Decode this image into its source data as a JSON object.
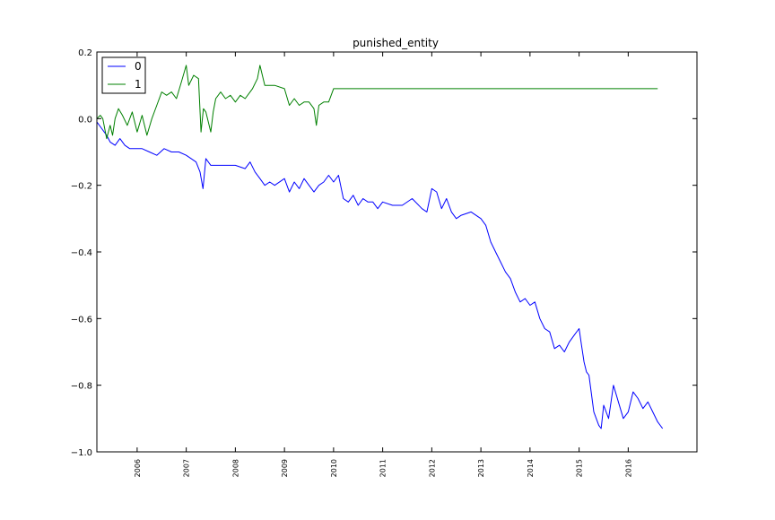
{
  "chart_data": {
    "type": "line",
    "title": "punished_entity",
    "xlabel": "",
    "ylabel": "",
    "xlim": [
      2005.18,
      2017.4
    ],
    "ylim": [
      -1.0,
      0.2
    ],
    "yticks": [
      {
        "value": 0.2,
        "label": "0.2"
      },
      {
        "value": 0.0,
        "label": "0.0"
      },
      {
        "value": -0.2,
        "label": "−0.2"
      },
      {
        "value": -0.4,
        "label": "−0.4"
      },
      {
        "value": -0.6,
        "label": "−0.6"
      },
      {
        "value": -0.8,
        "label": "−0.8"
      },
      {
        "value": -1.0,
        "label": "−1.0"
      }
    ],
    "xticks": [
      {
        "value": 2006,
        "label": "2006"
      },
      {
        "value": 2007,
        "label": "2007"
      },
      {
        "value": 2008,
        "label": "2008"
      },
      {
        "value": 2009,
        "label": "2009"
      },
      {
        "value": 2010,
        "label": "2010"
      },
      {
        "value": 2011,
        "label": "2011"
      },
      {
        "value": 2012,
        "label": "2012"
      },
      {
        "value": 2013,
        "label": "2013"
      },
      {
        "value": 2014,
        "label": "2014"
      },
      {
        "value": 2015,
        "label": "2015"
      },
      {
        "value": 2016,
        "label": "2016"
      }
    ],
    "grid": false,
    "legend": {
      "position": "top-left"
    },
    "series": [
      {
        "name": "0",
        "color": "#0000ff",
        "x": [
          2005.18,
          2005.28,
          2005.38,
          2005.45,
          2005.55,
          2005.65,
          2005.75,
          2005.85,
          2005.95,
          2006.1,
          2006.25,
          2006.4,
          2006.55,
          2006.7,
          2006.85,
          2007.0,
          2007.1,
          2007.2,
          2007.28,
          2007.34,
          2007.4,
          2007.5,
          2007.6,
          2007.8,
          2008.0,
          2008.2,
          2008.3,
          2008.4,
          2008.5,
          2008.6,
          2008.7,
          2008.8,
          2009.0,
          2009.1,
          2009.2,
          2009.3,
          2009.4,
          2009.5,
          2009.6,
          2009.7,
          2009.8,
          2009.9,
          2010.0,
          2010.1,
          2010.2,
          2010.3,
          2010.4,
          2010.5,
          2010.6,
          2010.7,
          2010.8,
          2010.9,
          2011.0,
          2011.2,
          2011.4,
          2011.6,
          2011.8,
          2011.9,
          2012.0,
          2012.1,
          2012.2,
          2012.3,
          2012.4,
          2012.5,
          2012.6,
          2012.8,
          2013.0,
          2013.1,
          2013.2,
          2013.3,
          2013.4,
          2013.5,
          2013.6,
          2013.7,
          2013.8,
          2013.9,
          2014.0,
          2014.1,
          2014.2,
          2014.3,
          2014.4,
          2014.5,
          2014.6,
          2014.7,
          2014.8,
          2014.9,
          2015.0,
          2015.05,
          2015.1,
          2015.15,
          2015.2,
          2015.3,
          2015.4,
          2015.45,
          2015.5,
          2015.6,
          2015.7,
          2015.8,
          2015.9,
          2016.0,
          2016.1,
          2016.2,
          2016.3,
          2016.4,
          2016.5,
          2016.6,
          2016.7
        ],
        "values": [
          -0.01,
          -0.03,
          -0.05,
          -0.07,
          -0.08,
          -0.06,
          -0.08,
          -0.09,
          -0.09,
          -0.09,
          -0.1,
          -0.11,
          -0.09,
          -0.1,
          -0.1,
          -0.11,
          -0.12,
          -0.13,
          -0.16,
          -0.21,
          -0.12,
          -0.14,
          -0.14,
          -0.14,
          -0.14,
          -0.15,
          -0.13,
          -0.16,
          -0.18,
          -0.2,
          -0.19,
          -0.2,
          -0.18,
          -0.22,
          -0.19,
          -0.21,
          -0.18,
          -0.2,
          -0.22,
          -0.2,
          -0.19,
          -0.17,
          -0.19,
          -0.17,
          -0.24,
          -0.25,
          -0.23,
          -0.26,
          -0.24,
          -0.25,
          -0.25,
          -0.27,
          -0.25,
          -0.26,
          -0.26,
          -0.24,
          -0.27,
          -0.28,
          -0.21,
          -0.22,
          -0.27,
          -0.24,
          -0.28,
          -0.3,
          -0.29,
          -0.28,
          -0.3,
          -0.32,
          -0.37,
          -0.4,
          -0.43,
          -0.46,
          -0.48,
          -0.52,
          -0.55,
          -0.54,
          -0.56,
          -0.55,
          -0.6,
          -0.63,
          -0.64,
          -0.69,
          -0.68,
          -0.7,
          -0.67,
          -0.65,
          -0.63,
          -0.68,
          -0.73,
          -0.76,
          -0.77,
          -0.88,
          -0.92,
          -0.93,
          -0.86,
          -0.9,
          -0.8,
          -0.85,
          -0.9,
          -0.88,
          -0.82,
          -0.84,
          -0.87,
          -0.85,
          -0.88,
          -0.91,
          -0.93
        ]
      },
      {
        "name": "1",
        "color": "#008000",
        "x": [
          2005.18,
          2005.25,
          2005.3,
          2005.38,
          2005.45,
          2005.5,
          2005.55,
          2005.62,
          2005.7,
          2005.8,
          2005.9,
          2006.0,
          2006.1,
          2006.2,
          2006.3,
          2006.4,
          2006.5,
          2006.6,
          2006.7,
          2006.8,
          2006.9,
          2007.0,
          2007.05,
          2007.15,
          2007.25,
          2007.3,
          2007.35,
          2007.4,
          2007.5,
          2007.55,
          2007.6,
          2007.7,
          2007.8,
          2007.9,
          2008.0,
          2008.1,
          2008.2,
          2008.3,
          2008.35,
          2008.45,
          2008.5,
          2008.6,
          2008.7,
          2008.8,
          2009.0,
          2009.1,
          2009.2,
          2009.3,
          2009.4,
          2009.5,
          2009.6,
          2009.65,
          2009.7,
          2009.8,
          2009.9,
          2010.0,
          2010.1,
          2011.0,
          2012.0,
          2013.0,
          2014.0,
          2015.0,
          2016.0,
          2016.6
        ],
        "values": [
          0.0,
          0.01,
          0.0,
          -0.06,
          -0.02,
          -0.05,
          0.0,
          0.03,
          0.01,
          -0.02,
          0.02,
          -0.04,
          0.01,
          -0.05,
          0.0,
          0.04,
          0.08,
          0.07,
          0.08,
          0.06,
          0.11,
          0.16,
          0.1,
          0.13,
          0.12,
          -0.04,
          0.03,
          0.02,
          -0.04,
          0.02,
          0.06,
          0.08,
          0.06,
          0.07,
          0.05,
          0.07,
          0.06,
          0.08,
          0.09,
          0.12,
          0.16,
          0.1,
          0.1,
          0.1,
          0.09,
          0.04,
          0.06,
          0.04,
          0.05,
          0.05,
          0.03,
          -0.02,
          0.04,
          0.05,
          0.05,
          0.09,
          0.09,
          0.09,
          0.09,
          0.09,
          0.09,
          0.09,
          0.09,
          0.09
        ]
      }
    ]
  }
}
